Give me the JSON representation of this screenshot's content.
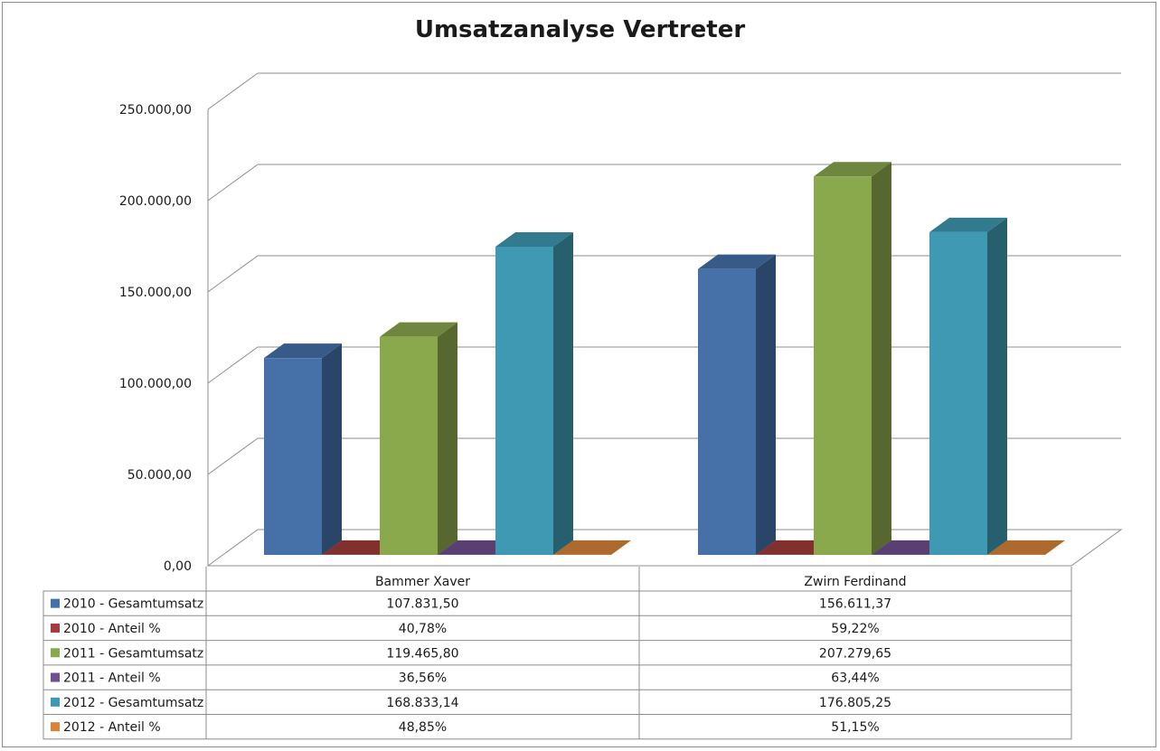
{
  "chart_data": {
    "type": "bar",
    "title": "Umsatzanalyse Vertreter",
    "categories": [
      "Bammer Xaver",
      "Zwirn Ferdinand"
    ],
    "series": [
      {
        "name": "2010 - Gesamtumsatz",
        "values": [
          107831.5,
          156611.37
        ],
        "labels": [
          "107.831,50",
          "156.611,37"
        ],
        "color": "#4570a8"
      },
      {
        "name": "2010 - Anteil %",
        "values": [
          40.78,
          59.22
        ],
        "labels": [
          "40,78%",
          "59,22%"
        ],
        "color": "#a33c3a"
      },
      {
        "name": "2011 - Gesamtumsatz",
        "values": [
          119465.8,
          207279.65
        ],
        "labels": [
          "119.465,80",
          "207.279,65"
        ],
        "color": "#8aa84c"
      },
      {
        "name": "2011 - Anteil %",
        "values": [
          36.56,
          63.44
        ],
        "labels": [
          "36,56%",
          "63,44%"
        ],
        "color": "#6f4f8f"
      },
      {
        "name": "2012 - Gesamtumsatz",
        "values": [
          168833.14,
          176805.25
        ],
        "labels": [
          "168.833,14",
          "176.805,25"
        ],
        "color": "#3f99b2"
      },
      {
        "name": "2012 - Anteil %",
        "values": [
          48.85,
          51.15
        ],
        "labels": [
          "48,85%",
          "51,15%"
        ],
        "color": "#d9833a"
      }
    ],
    "yticks": [
      "0,00",
      "50.000,00",
      "100.000,00",
      "150.000,00",
      "200.000,00",
      "250.000,00"
    ],
    "ylim": [
      0,
      250000
    ],
    "grid": true,
    "legend": "data-table"
  }
}
